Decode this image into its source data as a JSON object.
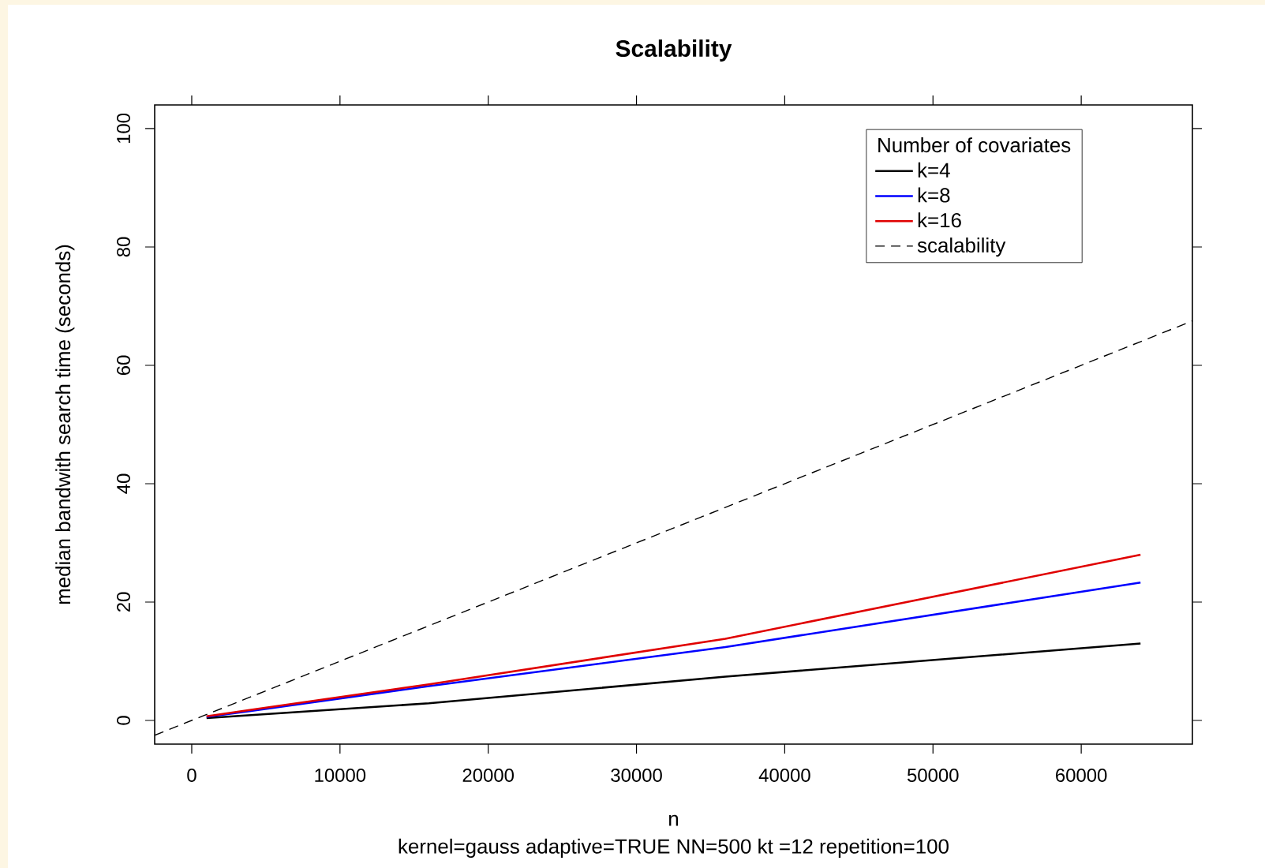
{
  "chart_data": {
    "type": "line",
    "title": "Scalability",
    "xlabel": "n",
    "ylabel": "median bandwith search time (seconds)",
    "legend_title": "Number of covariates",
    "legend": "top right",
    "marker": "none",
    "annotations": [
      "kernel=gauss adaptive=TRUE NN=500 kt =12 repetition=100"
    ],
    "xlim": [
      -2500,
      67500
    ],
    "ylim": [
      -4,
      104
    ],
    "xticks": [
      0,
      10000,
      20000,
      30000,
      40000,
      50000,
      60000
    ],
    "yticks": [
      0,
      20,
      40,
      60,
      80,
      100
    ],
    "series": [
      {
        "name": "k=4",
        "color": "#000000",
        "line_style": "solid",
        "x": [
          1000,
          4000,
          16000,
          36000,
          64000
        ],
        "values": [
          0.4,
          0.9,
          2.9,
          7.4,
          13.0
        ]
      },
      {
        "name": "k=8",
        "color": "#0000ff",
        "line_style": "solid",
        "x": [
          1000,
          4000,
          16000,
          36000,
          64000
        ],
        "values": [
          0.6,
          1.6,
          5.8,
          12.4,
          23.3
        ]
      },
      {
        "name": "k=16",
        "color": "#e00000",
        "line_style": "solid",
        "x": [
          1000,
          4000,
          16000,
          36000,
          64000
        ],
        "values": [
          0.7,
          1.8,
          6.1,
          13.8,
          28.0
        ]
      },
      {
        "name": "scalability",
        "color": "#000000",
        "line_style": "dashed",
        "x": [
          -2500,
          67500
        ],
        "values": [
          -2.5,
          67.5
        ]
      }
    ]
  }
}
